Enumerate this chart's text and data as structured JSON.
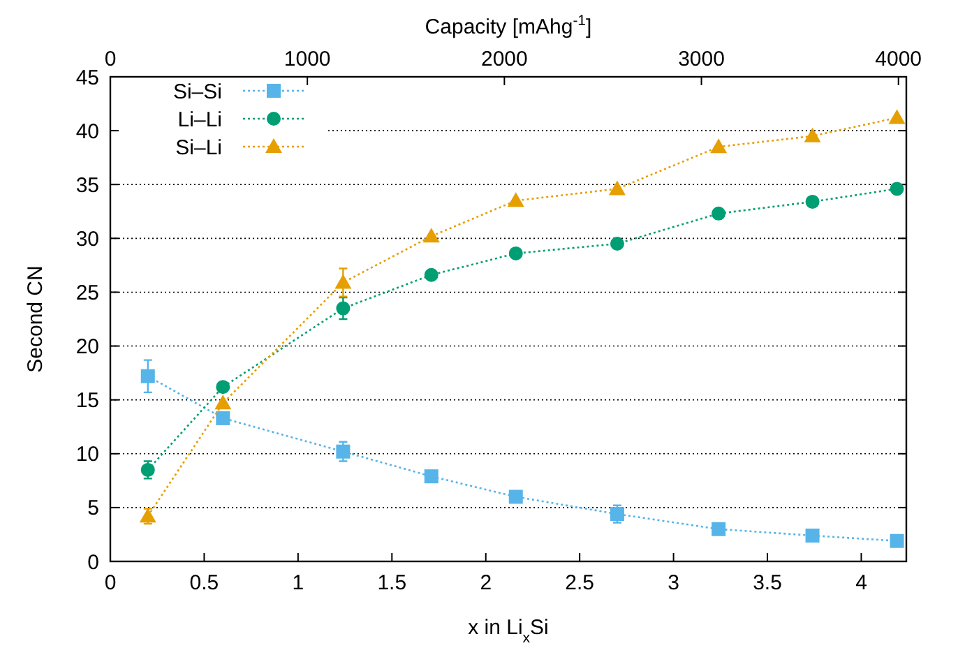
{
  "chart_data": {
    "type": "line",
    "xlabel": "x in Li$_{x}$Si",
    "ylabel": "Second CN",
    "x2label": "Capacity [mAhg$^{-1}$]",
    "xlim": [
      0,
      4.24
    ],
    "xticks": [
      0,
      0.5,
      1,
      1.5,
      2,
      2.5,
      3,
      3.5,
      4
    ],
    "x2lim": [
      0,
      4040
    ],
    "x2ticks": [
      0,
      1000,
      2000,
      3000,
      4000
    ],
    "ylim": [
      0,
      45
    ],
    "yticks": [
      0,
      5,
      10,
      15,
      20,
      25,
      30,
      35,
      40,
      45
    ],
    "grid": "y",
    "legend": "top left",
    "line_style": "dotted",
    "series": [
      {
        "name": "Si–Si",
        "color": "#56b4e9",
        "marker": "square",
        "x": [
          0.2,
          0.6,
          1.24,
          1.71,
          2.16,
          2.7,
          3.24,
          3.74,
          4.19
        ],
        "values": [
          17.2,
          13.3,
          10.2,
          7.9,
          6.0,
          4.4,
          3.0,
          2.4,
          1.9
        ],
        "errors": [
          1.5,
          null,
          0.9,
          null,
          null,
          0.8,
          null,
          null,
          null
        ]
      },
      {
        "name": "Li–Li",
        "color": "#009e73",
        "marker": "circle",
        "x": [
          0.2,
          0.6,
          1.24,
          1.71,
          2.16,
          2.7,
          3.24,
          3.74,
          4.19
        ],
        "values": [
          8.5,
          16.2,
          23.5,
          26.6,
          28.6,
          29.5,
          32.3,
          33.4,
          34.6
        ],
        "errors": [
          0.8,
          null,
          1.0,
          null,
          null,
          null,
          null,
          null,
          null
        ]
      },
      {
        "name": "Si–Li",
        "color": "#e69f00",
        "marker": "triangle",
        "x": [
          0.2,
          0.6,
          1.24,
          1.71,
          2.16,
          2.7,
          3.24,
          3.74,
          4.19
        ],
        "values": [
          4.2,
          14.7,
          25.9,
          30.2,
          33.5,
          34.6,
          38.5,
          39.5,
          41.2
        ],
        "errors": [
          0.7,
          null,
          1.3,
          null,
          null,
          null,
          null,
          null,
          null
        ]
      }
    ]
  }
}
